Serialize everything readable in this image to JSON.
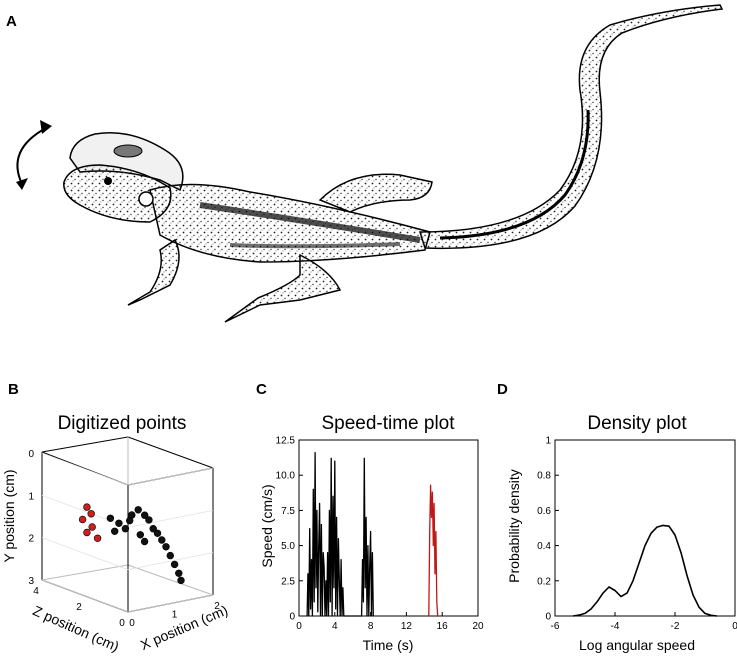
{
  "panels": {
    "A": "A",
    "B": "B",
    "C": "C",
    "D": "D"
  },
  "illustration": {
    "icon": "lizard-head-rotation-illustration"
  },
  "chart_data": [
    {
      "type": "scatter3d",
      "title": "Digitized points",
      "xlabel": "X position (cm)",
      "ylabel": "Y position (cm)",
      "zlabel": "Z position (cm)",
      "xlim": [
        0,
        2
      ],
      "ylim": [
        0,
        3
      ],
      "zlim": [
        0,
        4
      ],
      "x_ticks": [
        "0",
        "1",
        "2"
      ],
      "y_ticks": [
        "0",
        "1",
        "2",
        "3"
      ],
      "z_ticks": [
        "4",
        "2",
        "0"
      ],
      "series": [
        {
          "color": "#111111",
          "points": [
            [
              1.05,
              1.1,
              1.6
            ],
            [
              1.1,
              1.2,
              1.4
            ],
            [
              1.0,
              1.25,
              1.8
            ],
            [
              1.15,
              1.3,
              1.3
            ],
            [
              1.0,
              1.4,
              1.9
            ],
            [
              1.2,
              1.5,
              1.2
            ],
            [
              1.25,
              1.6,
              1.1
            ],
            [
              1.3,
              1.75,
              1.0
            ],
            [
              1.35,
              1.9,
              0.9
            ],
            [
              1.4,
              2.1,
              0.8
            ],
            [
              1.45,
              2.3,
              0.7
            ],
            [
              1.5,
              2.5,
              0.6
            ],
            [
              1.5,
              2.65,
              0.5
            ],
            [
              0.8,
              1.4,
              2.4
            ],
            [
              0.9,
              1.5,
              2.2
            ],
            [
              0.95,
              1.6,
              2.0
            ],
            [
              0.85,
              1.7,
              2.3
            ],
            [
              1.1,
              1.7,
              1.6
            ],
            [
              1.15,
              1.85,
              1.5
            ]
          ]
        },
        {
          "color": "#cc1f1f",
          "points": [
            [
              0.55,
              1.2,
              3.0
            ],
            [
              0.6,
              1.35,
              2.9
            ],
            [
              0.5,
              1.5,
              3.1
            ],
            [
              0.6,
              1.65,
              2.85
            ],
            [
              0.55,
              1.8,
              3.0
            ],
            [
              0.65,
              1.9,
              2.7
            ]
          ]
        }
      ]
    },
    {
      "type": "line",
      "title": "Speed-time plot",
      "xlabel": "Time (s)",
      "ylabel": "Speed (cm/s)",
      "xlim": [
        0,
        20
      ],
      "ylim": [
        0,
        12.5
      ],
      "x_ticks": [
        "0",
        "4",
        "8",
        "12",
        "16",
        "20"
      ],
      "y_ticks": [
        "0",
        "2.5",
        "5.0",
        "7.5",
        "10.0",
        "12.5"
      ],
      "series": [
        {
          "color": "#000000",
          "x": [
            0.9,
            1.0,
            1.1,
            1.2,
            1.3,
            1.4,
            1.5,
            1.6,
            1.7,
            1.8,
            1.9,
            2.0,
            2.1,
            2.2,
            2.3,
            2.4,
            2.5,
            2.6,
            2.7,
            2.8,
            2.9,
            3.0,
            3.1,
            3.2,
            3.3,
            3.4,
            3.5,
            3.6,
            3.7,
            3.8,
            3.9,
            4.0,
            4.1,
            4.2,
            4.3,
            4.4,
            4.5,
            4.6,
            4.7,
            4.8,
            4.9,
            5.0,
            5.1,
            7.0,
            7.1,
            7.2,
            7.3,
            7.4,
            7.5,
            7.6,
            7.7,
            7.8,
            7.9,
            8.0,
            8.1,
            8.2,
            8.3
          ],
          "y": [
            0,
            3.0,
            0,
            6.2,
            0.5,
            4.0,
            0,
            9.0,
            1.0,
            11.6,
            2.0,
            7.5,
            0.3,
            5.0,
            8.0,
            0,
            6.5,
            0,
            4.5,
            3.5,
            0,
            2.5,
            0,
            4.5,
            0,
            7.5,
            1.0,
            11.2,
            0,
            8.5,
            2.0,
            11.0,
            0.5,
            7.0,
            0,
            5.5,
            2.5,
            0,
            4.0,
            0,
            2.0,
            0,
            0,
            0,
            4.0,
            1.0,
            11.2,
            2.0,
            7.0,
            0,
            5.0,
            0,
            3.5,
            6.0,
            0,
            4.5,
            0
          ]
        },
        {
          "color": "#c01818",
          "x": [
            14.5,
            14.6,
            14.7,
            14.8,
            14.9,
            15.0,
            15.1,
            15.2,
            15.3,
            15.4,
            15.5
          ],
          "y": [
            0,
            6.0,
            9.3,
            7.0,
            8.8,
            5.0,
            8.0,
            3.0,
            6.0,
            1.0,
            0
          ]
        }
      ]
    },
    {
      "type": "line",
      "title": "Density plot",
      "xlabel": "Log angular speed",
      "ylabel": "Probability density",
      "xlim": [
        -6,
        0
      ],
      "ylim": [
        0,
        1
      ],
      "x_ticks": [
        "-6",
        "-4",
        "-2",
        "0"
      ],
      "y_ticks": [
        "0",
        "0.2",
        "0.4",
        "0.6",
        "0.8",
        "1"
      ],
      "series": [
        {
          "color": "#000000",
          "x": [
            -5.4,
            -5.2,
            -5.0,
            -4.8,
            -4.6,
            -4.4,
            -4.2,
            -4.0,
            -3.8,
            -3.6,
            -3.4,
            -3.2,
            -3.0,
            -2.8,
            -2.6,
            -2.4,
            -2.2,
            -2.0,
            -1.8,
            -1.6,
            -1.4,
            -1.2,
            -1.0,
            -0.8,
            -0.6
          ],
          "y": [
            0.0,
            0.005,
            0.015,
            0.04,
            0.08,
            0.13,
            0.165,
            0.145,
            0.11,
            0.13,
            0.2,
            0.3,
            0.4,
            0.47,
            0.505,
            0.515,
            0.51,
            0.46,
            0.36,
            0.23,
            0.12,
            0.05,
            0.015,
            0.004,
            0.0
          ]
        }
      ]
    }
  ]
}
